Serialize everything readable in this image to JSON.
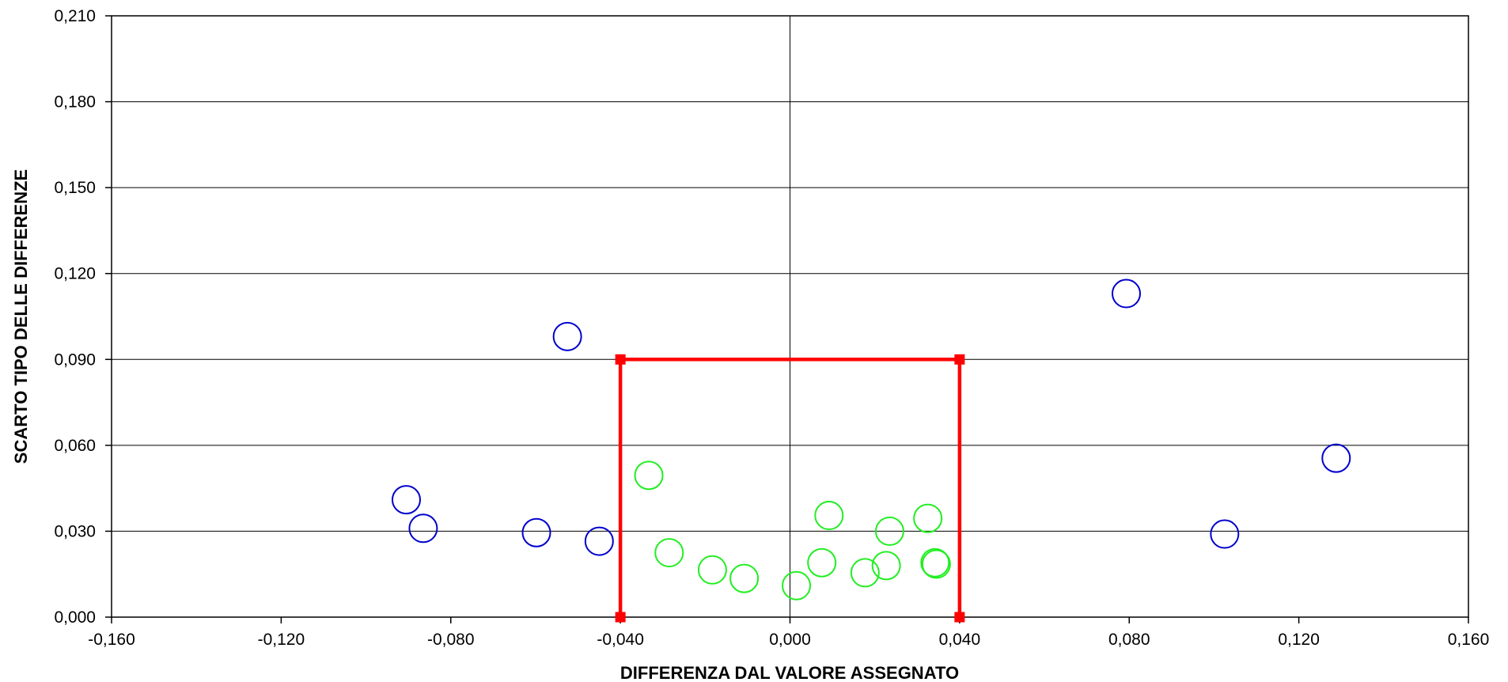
{
  "chart_data": {
    "type": "scatter",
    "title": "",
    "xlabel": "DIFFERENZA DAL VALORE ASSEGNATO",
    "ylabel": "SCARTO TIPO DELLE DIFFERENZE",
    "xlim": [
      -0.16,
      0.16
    ],
    "ylim": [
      0,
      0.21
    ],
    "x_ticks": [
      -0.16,
      -0.12,
      -0.08,
      -0.04,
      0,
      0.04,
      0.08,
      0.12,
      0.16
    ],
    "x_tick_labels": [
      "-0,160",
      "-0,120",
      "-0,080",
      "-0,040",
      "0,000",
      "0,040",
      "0,080",
      "0,120",
      "0,160"
    ],
    "y_ticks": [
      0,
      0.03,
      0.06,
      0.09,
      0.12,
      0.15,
      0.18,
      0.21
    ],
    "y_tick_labels": [
      "0,000",
      "0,030",
      "0,060",
      "0,090",
      "0,120",
      "0,150",
      "0,180",
      "0,210"
    ],
    "grid": "horizontal",
    "legend": "none",
    "series": [
      {
        "color": "#0000cc",
        "marker": "open-circle",
        "points": [
          {
            "x": -0.0905,
            "y": 0.041
          },
          {
            "x": -0.0865,
            "y": 0.031
          },
          {
            "x": -0.0598,
            "y": 0.0295
          },
          {
            "x": -0.0525,
            "y": 0.098
          },
          {
            "x": -0.045,
            "y": 0.0265
          },
          {
            "x": 0.0793,
            "y": 0.113
          },
          {
            "x": 0.1025,
            "y": 0.029
          },
          {
            "x": 0.1288,
            "y": 0.0555
          }
        ]
      },
      {
        "color": "#22ee22",
        "marker": "open-circle",
        "points": [
          {
            "x": -0.0333,
            "y": 0.0495
          },
          {
            "x": -0.0285,
            "y": 0.0225
          },
          {
            "x": -0.0183,
            "y": 0.0165
          },
          {
            "x": -0.0108,
            "y": 0.0135
          },
          {
            "x": 0.0015,
            "y": 0.011
          },
          {
            "x": 0.0075,
            "y": 0.019
          },
          {
            "x": 0.0092,
            "y": 0.0355
          },
          {
            "x": 0.0177,
            "y": 0.0155
          },
          {
            "x": 0.0227,
            "y": 0.018
          },
          {
            "x": 0.0235,
            "y": 0.03
          },
          {
            "x": 0.0325,
            "y": 0.0345
          },
          {
            "x": 0.0342,
            "y": 0.019
          },
          {
            "x": 0.0345,
            "y": 0.0185
          }
        ]
      }
    ],
    "limit_box": {
      "color": "#ff0000",
      "points": [
        {
          "x": -0.04,
          "y": 0
        },
        {
          "x": -0.04,
          "y": 0.09
        },
        {
          "x": 0.04,
          "y": 0.09
        },
        {
          "x": 0.04,
          "y": 0
        }
      ]
    }
  }
}
